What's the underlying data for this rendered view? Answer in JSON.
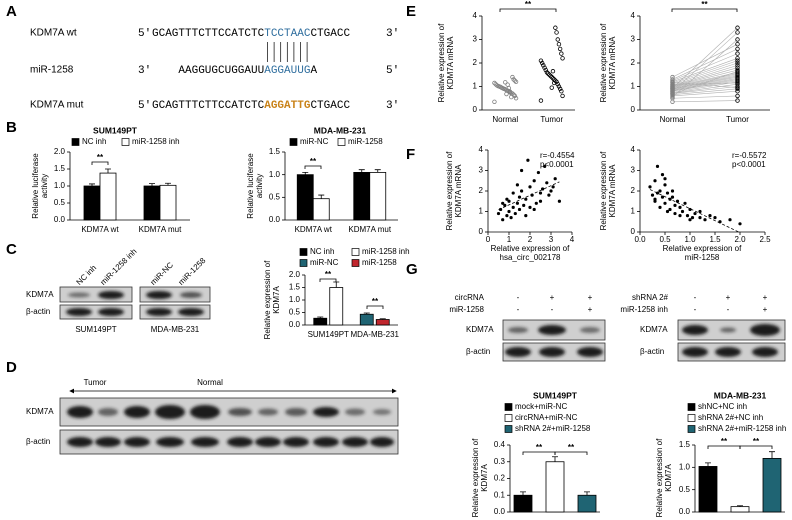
{
  "panel_letters": [
    "A",
    "B",
    "C",
    "D",
    "E",
    "F",
    "G"
  ],
  "sequence_alignment": {
    "rows": [
      {
        "name": "KDM7A wt",
        "left": "5'",
        "parts": [
          "GCAGTTTCTTCCATCTC",
          "TCCTAAC",
          "CTGACC"
        ],
        "right": "3'"
      },
      {
        "name": "miR-1258",
        "left": "3'",
        "parts": [
          "AAGGUGCUGGAUU",
          "AGGAUUG",
          "A"
        ],
        "right": "5'"
      },
      {
        "name": "KDM7A mut",
        "left": "5'",
        "parts": [
          "GCAGTTTCTTCCATCTC",
          "AGGATTG",
          "CTGACC"
        ],
        "right": "3'"
      }
    ]
  },
  "blot_c": {
    "lanes": [
      "NC inh",
      "miR-1258 inh",
      "miR-NC",
      "miR-1258"
    ],
    "rows": [
      "KDM7A",
      "β-actin"
    ],
    "groups": [
      "SUM149PT",
      "MDA-MB-231"
    ]
  },
  "blot_d": {
    "groups": [
      "Tumor",
      "Normal"
    ],
    "rows": [
      "KDM7A",
      "β-actin"
    ]
  },
  "blot_g": [
    {
      "conditions": [
        {
          "name": "circRNA",
          "marks": [
            "-",
            "+",
            "+"
          ]
        },
        {
          "name": "miR-1258",
          "marks": [
            "-",
            "-",
            "+"
          ]
        }
      ],
      "rows": [
        "KDM7A",
        "β-actin"
      ]
    },
    {
      "conditions": [
        {
          "name": "shRNA 2#",
          "marks": [
            "-",
            "+",
            "+"
          ]
        },
        {
          "name": "miR-1258 inh",
          "marks": [
            "-",
            "-",
            "+"
          ]
        }
      ],
      "rows": [
        "KDM7A",
        "β-actin"
      ]
    }
  ],
  "chart_data": [
    {
      "type": "bar",
      "title": "SUM149PT",
      "categories": [
        "KDM7A wt",
        "KDM7A mut"
      ],
      "series": [
        {
          "name": "NC inh",
          "color": "#000000",
          "values": [
            1.0,
            1.0
          ],
          "errors": [
            0.06,
            0.07
          ]
        },
        {
          "name": "miR-1258 inh",
          "color": "#ffffff",
          "values": [
            1.38,
            1.02
          ],
          "errors": [
            0.12,
            0.06
          ]
        }
      ],
      "y_label": [
        "Relative luciferase",
        "activity"
      ],
      "ylim": [
        0,
        2
      ],
      "yticks": [
        {
          "value": 0,
          "label": "0.0"
        },
        0.5,
        {
          "value": 1,
          "label": "1.0"
        },
        1.5,
        {
          "value": 2,
          "label": "2.0"
        }
      ],
      "annotations": [
        "**"
      ]
    },
    {
      "type": "bar",
      "title": "MDA-MB-231",
      "categories": [
        "KDM7A wt",
        "KDM7A mut"
      ],
      "series": [
        {
          "name": "miR-NC",
          "color": "#000000",
          "values": [
            1.0,
            1.05
          ],
          "errors": [
            0.05,
            0.06
          ]
        },
        {
          "name": "miR-1258",
          "color": "#ffffff",
          "values": [
            0.47,
            1.05
          ],
          "errors": [
            0.08,
            0.06
          ]
        }
      ],
      "y_label": [
        "Relative luciferase",
        "activity"
      ],
      "ylim": [
        0,
        1.5
      ],
      "yticks": [
        {
          "value": 0,
          "label": "0.0"
        },
        0.5,
        {
          "value": 1,
          "label": "1.0"
        },
        1.5
      ],
      "annotations": [
        "**"
      ]
    },
    {
      "type": "bar",
      "categories": [
        "SUM149PT",
        "MDA-MB-231"
      ],
      "series": [
        {
          "name": "NC inh",
          "color": "#000000",
          "values": [
            0.27,
            null
          ],
          "errors": [
            0.05,
            null
          ]
        },
        {
          "name": "miR-1258 inh",
          "color": "#ffffff",
          "values": [
            1.5,
            null
          ],
          "errors": [
            0.22,
            null
          ]
        },
        {
          "name": "miR-NC",
          "color": "#1f6473",
          "values": [
            null,
            0.43
          ],
          "errors": [
            null,
            0.05
          ]
        },
        {
          "name": "miR-1258",
          "color": "#c0262d",
          "values": [
            null,
            0.22
          ],
          "errors": [
            null,
            0.03
          ]
        }
      ],
      "y_label": [
        "Relative expression of",
        "KDM7A"
      ],
      "ylim": [
        0,
        2
      ],
      "yticks": [
        {
          "value": 0,
          "label": "0.0"
        },
        0.5,
        {
          "value": 1,
          "label": "1.0"
        },
        1.5,
        {
          "value": 2,
          "label": "2.0"
        }
      ],
      "annotations": [
        "**",
        "**"
      ]
    },
    {
      "type": "strip",
      "categories": [
        "Normal",
        "Tumor"
      ],
      "point_colors": [
        "#808080",
        "#000000"
      ],
      "values": [
        [
          0.35,
          0.5,
          0.6,
          0.65,
          0.7,
          0.72,
          0.75,
          0.8,
          0.82,
          0.85,
          0.88,
          0.9,
          0.92,
          0.95,
          0.98,
          1.0,
          1.02,
          1.05,
          1.1,
          1.15,
          1.2,
          1.25,
          1.3,
          1.4,
          0.55,
          0.78,
          0.93,
          1.08,
          0.68,
          1.18
        ],
        [
          0.4,
          0.6,
          0.8,
          0.9,
          1.0,
          1.1,
          1.2,
          1.25,
          1.3,
          1.35,
          1.4,
          1.45,
          1.5,
          1.55,
          1.6,
          1.7,
          1.8,
          1.9,
          2.0,
          2.1,
          2.2,
          2.4,
          2.6,
          2.8,
          3.0,
          3.3,
          3.5,
          1.15,
          1.65,
          0.95
        ]
      ],
      "y_label": [
        "Relative expression of",
        "KDM7A mRNA"
      ],
      "ylim": [
        0,
        4
      ],
      "yticks": [
        0,
        1,
        2,
        3,
        4
      ],
      "annotations": [
        "**"
      ]
    },
    {
      "type": "paired",
      "categories": [
        "Normal",
        "Tumor"
      ],
      "point_colors": [
        "#808080",
        "#000000"
      ],
      "line_color": "#b0b0b0",
      "values": [
        [
          0.35,
          0.5,
          0.6,
          0.65,
          0.7,
          0.72,
          0.75,
          0.8,
          0.82,
          0.85,
          0.88,
          0.9,
          0.92,
          0.95,
          0.98,
          1.0,
          1.02,
          1.05,
          1.1,
          1.15,
          1.2,
          1.25,
          1.3,
          1.4,
          0.55,
          0.78,
          0.93,
          1.08,
          0.68,
          1.18
        ],
        [
          0.4,
          0.6,
          0.8,
          0.9,
          1.0,
          1.1,
          1.2,
          1.25,
          1.3,
          1.35,
          1.4,
          1.45,
          1.5,
          1.55,
          1.6,
          1.7,
          1.8,
          1.9,
          2.0,
          2.1,
          2.2,
          2.4,
          2.6,
          2.8,
          3.0,
          3.3,
          3.5,
          1.15,
          1.65,
          0.95
        ]
      ],
      "y_label": [
        "Relative expression of",
        "KDM7A mRNA"
      ],
      "ylim": [
        0,
        4
      ],
      "yticks": [
        0,
        1,
        2,
        3,
        4
      ],
      "annotations": [
        "**"
      ]
    },
    {
      "type": "scatter",
      "color": "#000000",
      "x": [
        0.5,
        0.6,
        0.7,
        0.8,
        0.9,
        1.0,
        1.0,
        1.1,
        1.2,
        1.2,
        1.3,
        1.4,
        1.5,
        1.5,
        1.6,
        1.7,
        1.8,
        1.9,
        2.0,
        2.0,
        2.1,
        2.2,
        2.3,
        2.4,
        2.5,
        2.6,
        2.7,
        2.8,
        3.0,
        3.2,
        3.4,
        1.6,
        2.2,
        0.9,
        1.4,
        2.9,
        1.8,
        2.5,
        3.1,
        0.7
      ],
      "values": [
        0.9,
        1.1,
        0.6,
        1.3,
        0.8,
        1.0,
        1.5,
        0.7,
        1.2,
        1.9,
        0.9,
        1.4,
        1.1,
        1.7,
        2.0,
        1.3,
        1.6,
        3.5,
        1.2,
        2.2,
        1.8,
        2.5,
        1.4,
        2.9,
        1.9,
        2.1,
        3.2,
        2.4,
        2.0,
        2.6,
        1.5,
        3.0,
        1.1,
        1.6,
        2.3,
        1.8,
        0.8,
        1.5,
        2.2,
        1.4
      ],
      "x_label": [
        "Relative expression of",
        "hsa_circ_002178"
      ],
      "y_label": [
        "Relative expression of",
        "KDM7A mRNA"
      ],
      "xlim": [
        0,
        4
      ],
      "xticks": [
        0,
        1,
        2,
        3,
        4
      ],
      "ylim": [
        0,
        4
      ],
      "yticks": [
        0,
        1,
        2,
        3,
        4
      ],
      "annotations": [
        "r=-0.4554",
        "p<0.0001"
      ]
    },
    {
      "type": "scatter",
      "color": "#000000",
      "x": [
        0.2,
        0.25,
        0.3,
        0.3,
        0.35,
        0.4,
        0.4,
        0.45,
        0.5,
        0.5,
        0.55,
        0.6,
        0.6,
        0.65,
        0.7,
        0.7,
        0.75,
        0.8,
        0.85,
        0.9,
        0.95,
        1.0,
        1.05,
        1.1,
        1.2,
        1.3,
        1.4,
        1.5,
        1.6,
        1.8,
        2.0,
        0.45,
        0.35,
        0.55,
        0.65,
        0.8,
        1.0,
        1.2,
        0.3,
        0.5
      ],
      "values": [
        2.2,
        1.8,
        2.5,
        1.5,
        3.2,
        2.0,
        1.2,
        1.7,
        2.3,
        1.4,
        1.9,
        1.6,
        1.1,
        2.0,
        1.3,
        0.9,
        1.5,
        1.2,
        1.0,
        1.4,
        0.8,
        1.1,
        0.7,
        0.9,
        1.0,
        0.6,
        0.8,
        0.7,
        0.5,
        0.6,
        0.4,
        2.8,
        1.9,
        1.0,
        1.7,
        0.8,
        0.6,
        0.7,
        1.6,
        2.6
      ],
      "x_label": [
        "Relative expression of",
        "miR-1258"
      ],
      "y_label": [
        "Relative expression of",
        "KDM7A mRNA"
      ],
      "xlim": [
        0,
        2.5
      ],
      "xticks": [
        {
          "value": 0,
          "label": "0.0"
        },
        0.5,
        {
          "value": 1,
          "label": "1.0"
        },
        1.5,
        {
          "value": 2,
          "label": "2.0"
        },
        2.5
      ],
      "ylim": [
        0,
        4
      ],
      "yticks": [
        0,
        1,
        2,
        3,
        4
      ],
      "annotations": [
        "r=-0.5572",
        "p<0.0001"
      ]
    },
    {
      "type": "bar",
      "title": "SUM149PT",
      "categories": [
        null
      ],
      "series": [
        {
          "name": "mock+miR-NC",
          "color": "#000000",
          "values": [
            0.1
          ],
          "errors": [
            0.02
          ]
        },
        {
          "name": "circRNA+miR-NC",
          "color": "#ffffff",
          "values": [
            0.3
          ],
          "errors": [
            0.03
          ]
        },
        {
          "name": "shRNA 2#+miR-1258",
          "color": "#1f6473",
          "values": [
            0.1
          ],
          "errors": [
            0.02
          ]
        }
      ],
      "y_label": [
        "Relative expression of",
        "KDM7A"
      ],
      "ylim": [
        0,
        0.4
      ],
      "yticks": [
        {
          "value": 0,
          "label": "0.0"
        },
        0.1,
        0.2,
        0.3,
        0.4
      ],
      "annotations": [
        "**",
        "**"
      ]
    },
    {
      "type": "bar",
      "title": "MDA-MB-231",
      "categories": [
        null
      ],
      "series": [
        {
          "name": "shNC+NC inh",
          "color": "#000000",
          "values": [
            1.02
          ],
          "errors": [
            0.08
          ]
        },
        {
          "name": "shRNA 2#+NC inh",
          "color": "#ffffff",
          "values": [
            0.12
          ],
          "errors": [
            0.02
          ]
        },
        {
          "name": "shRNA 2#+miR-1258 inh",
          "color": "#1f6473",
          "values": [
            1.2
          ],
          "errors": [
            0.15
          ]
        }
      ],
      "y_label": [
        "Relative expression of",
        "KDM7A"
      ],
      "ylim": [
        0,
        1.5
      ],
      "yticks": [
        {
          "value": 0,
          "label": "0.0"
        },
        0.5,
        {
          "value": 1,
          "label": "1.0"
        },
        1.5
      ],
      "annotations": [
        "**",
        "**"
      ]
    }
  ]
}
